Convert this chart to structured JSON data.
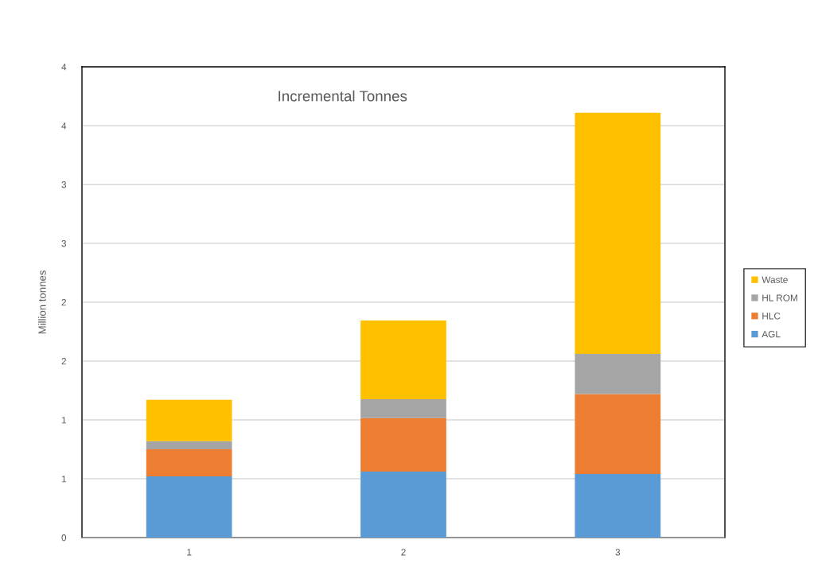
{
  "chart_data": {
    "type": "bar",
    "title": "Incremental Tonnes",
    "ylabel": "Million tonnes",
    "categories": [
      "1",
      "2",
      "3"
    ],
    "stacked": true,
    "series": [
      {
        "name": "AGL",
        "color": "#5b9bd5",
        "values": [
          0.52,
          0.56,
          0.54
        ]
      },
      {
        "name": "HLC",
        "color": "#ed7d31",
        "values": [
          0.23,
          0.455,
          0.68
        ]
      },
      {
        "name": "HL ROM",
        "color": "#a5a5a5",
        "values": [
          0.07,
          0.16,
          0.34
        ]
      },
      {
        "name": "Waste",
        "color": "#ffc000",
        "values": [
          0.35,
          0.67,
          2.05
        ]
      }
    ],
    "ylim": [
      0,
      4
    ],
    "yticks": [
      0,
      {
        "value": 0.5,
        "label": "1"
      },
      1,
      {
        "value": 1.5,
        "label": "2"
      },
      2,
      {
        "value": 2.5,
        "label": "3"
      },
      3,
      {
        "value": 3.5,
        "label": "4"
      },
      4
    ],
    "grid": "y",
    "legend": "right"
  }
}
